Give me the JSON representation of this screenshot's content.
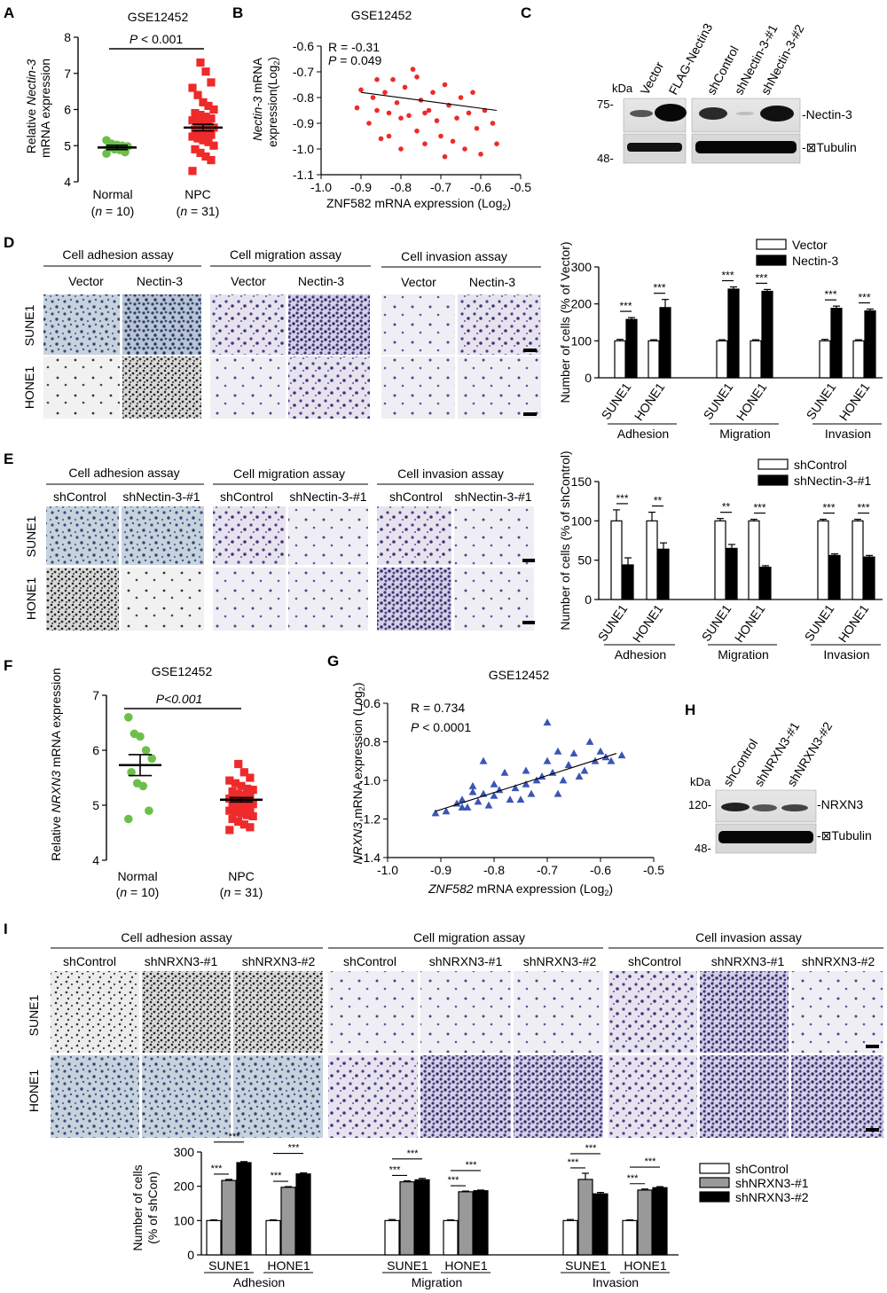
{
  "panel_letters": {
    "A": "A",
    "B": "B",
    "C": "C",
    "D": "D",
    "E": "E",
    "F": "F",
    "G": "G",
    "H": "H",
    "I": "I"
  },
  "panelA": {
    "title": "GSE12452",
    "ylabel_1": "Relative ",
    "ylabel_gene": "Nectin-3",
    "ylabel_2": "mRNA expression",
    "pval_p": "P",
    "pval_rest": " < 0.001",
    "groups": [
      {
        "name": "Normal",
        "n_open": "(",
        "n_it": "n",
        "n_rest": " = 10)"
      },
      {
        "name": "NPC",
        "n_open": "(",
        "n_it": "n",
        "n_rest": " = 31)"
      }
    ]
  },
  "panelB": {
    "title": "GSE12452",
    "r_text": "R = -0.31",
    "p_it": "P",
    "p_rest": " = 0.049",
    "ylabel_gene": "Nectin-3",
    "ylabel_1": " mRNA",
    "ylabel_2": "expression(Log",
    "ylabel_sub": "2",
    "ylabel_close": ")",
    "xlabel": "ZNF582 mRNA expression (Log",
    "xlabel_sub": "2",
    "xlabel_close": ")"
  },
  "panelC": {
    "kda": "kDa",
    "lanes": [
      "Vector",
      "FLAG-Nectin3",
      "shControl",
      "shNectin-3-#1",
      "shNectin-3-#2"
    ],
    "markers": [
      "75-",
      "48-"
    ],
    "bands": [
      "-Nectin-3",
      "-⊠Tubulin"
    ]
  },
  "panelD": {
    "assays": [
      "Cell adhesion assay",
      "Cell migration assay",
      "Cell invasion assay"
    ],
    "columns": [
      "Vector",
      "Nectin-3",
      "Vector",
      "Nectin-3",
      "Vector",
      "Nectin-3"
    ],
    "rows": [
      "SUNE1",
      "HONE1"
    ],
    "sig": [
      "***",
      "***",
      "***",
      "***",
      "***",
      "***"
    ]
  },
  "panelE": {
    "assays": [
      "Cell adhesion assay",
      "Cell migration assay",
      "Cell invasion assay"
    ],
    "columns": [
      "shControl",
      "shNectin-3-#1",
      "shControl",
      "shNectin-3-#1",
      "shControl",
      "shNectin-3-#1"
    ],
    "rows": [
      "SUNE1",
      "HONE1"
    ],
    "sig": [
      "***",
      "**",
      "**",
      "***",
      "***",
      "***"
    ]
  },
  "panelF": {
    "title": "GSE12452",
    "ylabel_1": "Relative ",
    "ylabel_gene": "NRXN3",
    "ylabel_2": " mRNA expression",
    "pval": "P<0.001",
    "groups": [
      {
        "name": "Normal",
        "n_open": "(",
        "n_it": "n",
        "n_rest": " = 10)"
      },
      {
        "name": "NPC",
        "n_open": "(",
        "n_it": "n",
        "n_rest": " = 31)"
      }
    ]
  },
  "panelG": {
    "title": "GSE12452",
    "r_text": "R = 0.734",
    "p_it": "P",
    "p_rest": " < 0.0001",
    "ylabel_gene": "NRXN3",
    "ylabel_1": " mRNA expression (Log",
    "ylabel_sub": "2",
    "ylabel_close": ")",
    "xlabel_gene": "ZNF582",
    "xlabel_1": " mRNA expression (Log",
    "xlabel_sub": "2",
    "xlabel_close": ")"
  },
  "panelH": {
    "kda": "kDa",
    "lanes": [
      "shControl",
      "shNRXN3-#1",
      "shNRXN3-#2"
    ],
    "markers": [
      "120-",
      "48-"
    ],
    "bands": [
      "-NRXN3",
      "-⊠Tubulin"
    ]
  },
  "panelI": {
    "assays": [
      "Cell adhesion assay",
      "Cell migration assay",
      "Cell invasion assay"
    ],
    "columns": [
      "shControl",
      "shNRXN3-#1",
      "shNRXN3-#2",
      "shControl",
      "shNRXN3-#1",
      "shNRXN3-#2",
      "shControl",
      "shNRXN3-#1",
      "shNRXN3-#2"
    ],
    "rows": [
      "SUNE1",
      "HONE1"
    ],
    "ylabel_1": "Number of cells",
    "ylabel_2": "(% of shCon)"
  },
  "chart_data": [
    {
      "id": "A",
      "type": "scatter",
      "title": "GSE12452",
      "categories": [
        "Normal",
        "NPC"
      ],
      "ylim": [
        4,
        8
      ],
      "yticks": [
        4,
        5,
        6,
        7,
        8
      ],
      "series": [
        {
          "name": "Normal",
          "color": "#6cc04a",
          "mean": 4.95,
          "sem": 0.06,
          "values": [
            4.78,
            4.82,
            4.88,
            4.9,
            4.95,
            4.98,
            5.0,
            5.02,
            5.05,
            5.15
          ]
        },
        {
          "name": "NPC",
          "color": "#ee2a2a",
          "mean": 5.5,
          "sem": 0.09,
          "values": [
            7.3,
            7.05,
            6.75,
            6.6,
            6.4,
            6.2,
            6.1,
            6.0,
            5.9,
            5.85,
            5.8,
            5.75,
            5.7,
            5.65,
            5.6,
            5.55,
            5.5,
            5.45,
            5.4,
            5.35,
            5.3,
            5.25,
            5.2,
            5.15,
            5.1,
            5.0,
            4.9,
            4.8,
            4.7,
            4.6,
            4.3
          ]
        }
      ]
    },
    {
      "id": "B",
      "type": "scatter",
      "title": "GSE12452",
      "xlim": [
        -1.0,
        -0.5
      ],
      "ylim": [
        -1.1,
        -0.6
      ],
      "xticks": [
        -1.0,
        -0.9,
        -0.8,
        -0.7,
        -0.6,
        -0.5
      ],
      "yticks": [
        -0.6,
        -0.7,
        -0.8,
        -0.9,
        -1.0,
        -1.1
      ],
      "color": "#ee2a2a",
      "points": [
        [
          -0.91,
          -0.84
        ],
        [
          -0.9,
          -0.77
        ],
        [
          -0.88,
          -0.9
        ],
        [
          -0.87,
          -0.8
        ],
        [
          -0.86,
          -0.85
        ],
        [
          -0.85,
          -0.96
        ],
        [
          -0.84,
          -0.78
        ],
        [
          -0.83,
          -0.86
        ],
        [
          -0.83,
          -0.95
        ],
        [
          -0.82,
          -0.73
        ],
        [
          -0.81,
          -0.82
        ],
        [
          -0.8,
          -0.88
        ],
        [
          -0.8,
          -1.0
        ],
        [
          -0.79,
          -0.76
        ],
        [
          -0.78,
          -0.87
        ],
        [
          -0.77,
          -0.69
        ],
        [
          -0.76,
          -0.72
        ],
        [
          -0.76,
          -0.93
        ],
        [
          -0.75,
          -0.81
        ],
        [
          -0.74,
          -0.98
        ],
        [
          -0.73,
          -0.85
        ],
        [
          -0.72,
          -0.78
        ],
        [
          -0.71,
          -0.89
        ],
        [
          -0.7,
          -0.95
        ],
        [
          -0.69,
          -0.75
        ],
        [
          -0.68,
          -0.83
        ],
        [
          -0.67,
          -0.97
        ],
        [
          -0.66,
          -0.88
        ],
        [
          -0.65,
          -0.8
        ],
        [
          -0.64,
          -1.0
        ],
        [
          -0.63,
          -0.86
        ],
        [
          -0.62,
          -0.78
        ],
        [
          -0.61,
          -0.92
        ],
        [
          -0.6,
          -1.02
        ],
        [
          -0.59,
          -0.85
        ],
        [
          -0.57,
          -0.9
        ],
        [
          -0.56,
          -0.98
        ],
        [
          -0.74,
          -0.86
        ],
        [
          -0.86,
          -0.73
        ],
        [
          -0.69,
          -1.03
        ]
      ],
      "fit": [
        [
          -0.9,
          -0.78
        ],
        [
          -0.56,
          -0.85
        ]
      ]
    },
    {
      "id": "D",
      "type": "bar",
      "ylabel": "Number of cells (% of Vector)",
      "ylim": [
        0,
        300
      ],
      "yticks": [
        0,
        100,
        200,
        300
      ],
      "groups": [
        "Adhesion",
        "Migration",
        "Invasion"
      ],
      "categories": [
        "SUNE1",
        "HONE1",
        "SUNE1",
        "HONE1",
        "SUNE1",
        "HONE1"
      ],
      "series": [
        {
          "name": "Vector",
          "color": "#ffffff",
          "values": [
            100,
            100,
            100,
            100,
            100,
            100
          ],
          "err": [
            4,
            3,
            3,
            3,
            4,
            3
          ]
        },
        {
          "name": "Nectin-3",
          "color": "#000000",
          "values": [
            158,
            190,
            240,
            234,
            188,
            181
          ],
          "err": [
            5,
            22,
            6,
            5,
            6,
            5
          ]
        }
      ]
    },
    {
      "id": "E",
      "type": "bar",
      "ylabel": "Number of cells (% of shControl)",
      "ylim": [
        0,
        150
      ],
      "yticks": [
        0,
        50,
        100,
        150
      ],
      "groups": [
        "Adhesion",
        "Migration",
        "Invasion"
      ],
      "categories": [
        "SUNE1",
        "HONE1",
        "SUNE1",
        "HONE1",
        "SUNE1",
        "HONE1"
      ],
      "series": [
        {
          "name": "shControl",
          "color": "#ffffff",
          "values": [
            100,
            100,
            100,
            100,
            100,
            100
          ],
          "err": [
            14,
            11,
            3,
            2,
            2,
            2
          ]
        },
        {
          "name": "shNectin-3-#1",
          "color": "#000000",
          "values": [
            44,
            64,
            65,
            41,
            56,
            54
          ],
          "err": [
            9,
            8,
            5,
            2,
            2,
            2
          ]
        }
      ]
    },
    {
      "id": "F",
      "type": "scatter",
      "title": "GSE12452",
      "categories": [
        "Normal",
        "NPC"
      ],
      "ylim": [
        4,
        7
      ],
      "yticks": [
        4,
        5,
        6,
        7
      ],
      "series": [
        {
          "name": "Normal",
          "color": "#6cc04a",
          "mean": 5.73,
          "sem": 0.19,
          "values": [
            6.6,
            6.3,
            6.25,
            6.0,
            5.85,
            5.6,
            5.4,
            5.35,
            4.9,
            4.75
          ]
        },
        {
          "name": "NPC",
          "color": "#ee2a2a",
          "mean": 5.1,
          "sem": 0.04,
          "values": [
            5.75,
            5.6,
            5.5,
            5.45,
            5.4,
            5.35,
            5.3,
            5.28,
            5.25,
            5.2,
            5.18,
            5.15,
            5.12,
            5.1,
            5.08,
            5.05,
            5.02,
            5.0,
            4.98,
            4.95,
            4.92,
            4.9,
            4.88,
            4.85,
            4.82,
            4.8,
            4.75,
            4.7,
            4.65,
            4.6,
            4.55
          ]
        }
      ]
    },
    {
      "id": "G",
      "type": "scatter",
      "title": "GSE12452",
      "xlim": [
        -1.0,
        -0.5
      ],
      "ylim": [
        -1.4,
        -0.6
      ],
      "xticks": [
        -1.0,
        -0.9,
        -0.8,
        -0.7,
        -0.6,
        -0.5
      ],
      "yticks": [
        -0.6,
        -0.8,
        -1.0,
        -1.2,
        -1.4
      ],
      "color": "#3a55b4",
      "points": [
        [
          -0.91,
          -1.17
        ],
        [
          -0.89,
          -1.16
        ],
        [
          -0.87,
          -1.12
        ],
        [
          -0.86,
          -1.1
        ],
        [
          -0.85,
          -1.14
        ],
        [
          -0.84,
          -1.06
        ],
        [
          -0.84,
          -1.03
        ],
        [
          -0.83,
          -1.11
        ],
        [
          -0.82,
          -1.07
        ],
        [
          -0.82,
          -0.9
        ],
        [
          -0.81,
          -1.13
        ],
        [
          -0.8,
          -1.08
        ],
        [
          -0.8,
          -1.02
        ],
        [
          -0.79,
          -1.05
        ],
        [
          -0.78,
          -0.96
        ],
        [
          -0.77,
          -1.1
        ],
        [
          -0.76,
          -1.04
        ],
        [
          -0.75,
          -1.1
        ],
        [
          -0.74,
          -1.02
        ],
        [
          -0.74,
          -0.95
        ],
        [
          -0.73,
          -1.07
        ],
        [
          -0.72,
          -1.0
        ],
        [
          -0.71,
          -0.98
        ],
        [
          -0.7,
          -0.9
        ],
        [
          -0.69,
          -0.96
        ],
        [
          -0.68,
          -0.85
        ],
        [
          -0.68,
          -1.07
        ],
        [
          -0.67,
          -1.0
        ],
        [
          -0.66,
          -0.92
        ],
        [
          -0.65,
          -0.86
        ],
        [
          -0.64,
          -0.98
        ],
        [
          -0.63,
          -0.95
        ],
        [
          -0.62,
          -0.8
        ],
        [
          -0.61,
          -0.9
        ],
        [
          -0.6,
          -0.85
        ],
        [
          -0.59,
          -0.88
        ],
        [
          -0.58,
          -0.9
        ],
        [
          -0.56,
          -0.87
        ],
        [
          -0.7,
          -0.7
        ],
        [
          -0.86,
          -1.14
        ]
      ],
      "fit": [
        [
          -0.91,
          -1.16
        ],
        [
          -0.57,
          -0.86
        ]
      ]
    },
    {
      "id": "I",
      "type": "bar",
      "ylabel": "Number of cells (% of shCon)",
      "ylim": [
        0,
        300
      ],
      "yticks": [
        0,
        100,
        200,
        300
      ],
      "groups": [
        "Adhesion",
        "Migration",
        "Invasion"
      ],
      "categories": [
        "SUNE1",
        "HONE1",
        "SUNE1",
        "HONE1",
        "SUNE1",
        "HONE1"
      ],
      "series": [
        {
          "name": "shControl",
          "color": "#ffffff",
          "values": [
            100,
            100,
            100,
            100,
            100,
            100
          ],
          "err": [
            2,
            2,
            3,
            2,
            3,
            2
          ]
        },
        {
          "name": "shNRXN3-#1",
          "color": "#999999",
          "values": [
            217,
            197,
            213,
            184,
            220,
            189
          ],
          "err": [
            3,
            2,
            3,
            2,
            18,
            3
          ]
        },
        {
          "name": "shNRXN3-#2",
          "color": "#000000",
          "values": [
            269,
            236,
            219,
            187,
            178,
            196
          ],
          "err": [
            3,
            3,
            4,
            2,
            4,
            3
          ]
        }
      ]
    }
  ]
}
